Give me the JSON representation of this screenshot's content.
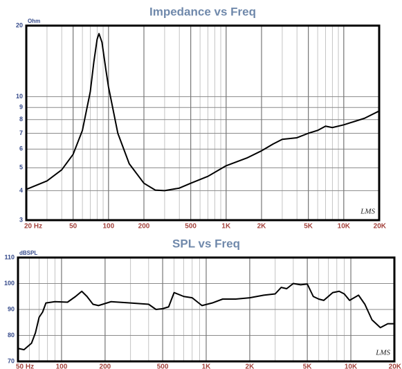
{
  "chart_data": [
    {
      "type": "line",
      "title": "Impedance vs Freq",
      "y_label": "Ohm",
      "annotation": "LMS",
      "xscale": "log",
      "yscale": "log",
      "grid": true,
      "color": "#000000",
      "xlim": [
        20,
        20000
      ],
      "ylim": [
        3,
        20
      ],
      "xticks": [
        {
          "value": 20,
          "label": "20  Hz"
        },
        50,
        100,
        200,
        500,
        {
          "value": 1000,
          "label": "1K"
        },
        {
          "value": 2000,
          "label": "2K"
        },
        {
          "value": 5000,
          "label": "5K"
        },
        {
          "value": 10000,
          "label": "10K"
        },
        {
          "value": 20000,
          "label": "20K"
        }
      ],
      "yticks": [
        3,
        4,
        5,
        6,
        7,
        8,
        9,
        10,
        20
      ],
      "x": [
        20,
        30,
        40,
        50,
        60,
        70,
        75,
        80,
        83,
        88,
        95,
        100,
        120,
        150,
        200,
        250,
        300,
        400,
        500,
        700,
        1000,
        1500,
        2000,
        2500,
        3000,
        4000,
        5000,
        6000,
        7000,
        8000,
        10000,
        15000,
        20000
      ],
      "values": [
        4.05,
        4.4,
        4.9,
        5.7,
        7.2,
        10.5,
        14,
        17.5,
        18.5,
        17,
        13,
        11,
        7,
        5.2,
        4.3,
        4.02,
        4.0,
        4.1,
        4.3,
        4.6,
        5.1,
        5.5,
        5.9,
        6.3,
        6.6,
        6.7,
        7.0,
        7.2,
        7.5,
        7.4,
        7.6,
        8.1,
        8.7
      ]
    },
    {
      "type": "line",
      "title": "SPL vs Freq",
      "y_label": "dBSPL",
      "annotation": "LMS",
      "xscale": "log",
      "yscale": "linear",
      "grid": true,
      "color": "#000000",
      "xlim": [
        50,
        20000
      ],
      "ylim": [
        70,
        110
      ],
      "xticks": [
        {
          "value": 50,
          "label": "50  Hz"
        },
        100,
        200,
        500,
        {
          "value": 1000,
          "label": "1K"
        },
        {
          "value": 2000,
          "label": "2K"
        },
        {
          "value": 5000,
          "label": "5K"
        },
        {
          "value": 10000,
          "label": "10K"
        },
        {
          "value": 20000,
          "label": "20K"
        }
      ],
      "yticks": [
        70,
        80,
        90,
        100,
        110
      ],
      "x": [
        50,
        55,
        62,
        66,
        70,
        74,
        78,
        90,
        110,
        125,
        138,
        150,
        165,
        180,
        220,
        300,
        400,
        450,
        500,
        550,
        600,
        700,
        800,
        935,
        1100,
        1300,
        1600,
        2000,
        2500,
        3000,
        3300,
        3600,
        4000,
        4500,
        5000,
        5500,
        6000,
        6500,
        7500,
        8300,
        9000,
        9800,
        11300,
        12500,
        14000,
        16000,
        18000,
        20000
      ],
      "values": [
        75,
        74.5,
        77,
        81,
        87,
        89,
        92.5,
        93,
        92.8,
        95,
        97,
        95,
        92,
        91.5,
        93,
        92.5,
        92,
        90,
        90.3,
        91,
        96.5,
        95,
        94.5,
        91.5,
        92.5,
        94,
        94,
        94.5,
        95.5,
        96,
        98.5,
        98,
        100,
        99.5,
        99.8,
        95,
        94,
        93.5,
        96.5,
        97,
        96,
        93.5,
        95.5,
        92,
        86,
        83,
        84.5,
        84.5
      ]
    }
  ]
}
